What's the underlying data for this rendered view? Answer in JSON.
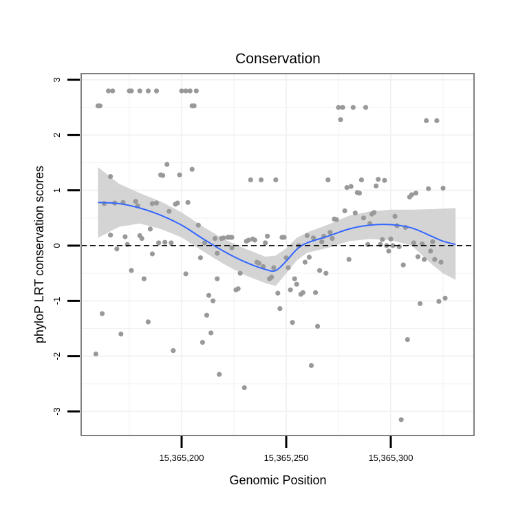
{
  "chart_data": {
    "type": "scatter",
    "title": "Conservation",
    "xlabel": "Genomic Position",
    "ylabel": "phyloP LRT conservation scores",
    "xlim": [
      15365152,
      15365342
    ],
    "ylim": [
      -3.4,
      3.1
    ],
    "x_ticks": [
      {
        "value": 15365200,
        "label": "15,365,200"
      },
      {
        "value": 15365250,
        "label": "15,365,250"
      },
      {
        "value": 15365300,
        "label": "15,365,300"
      }
    ],
    "y_ticks": [
      {
        "value": 3,
        "label": "3"
      },
      {
        "value": 2,
        "label": "2"
      },
      {
        "value": 1,
        "label": "1"
      },
      {
        "value": 0,
        "label": "0"
      },
      {
        "value": -1,
        "label": "-1"
      },
      {
        "value": -2,
        "label": "-2"
      },
      {
        "value": -3,
        "label": "-3"
      }
    ],
    "grid": true,
    "reference_line": {
      "y": 0,
      "style": "dashed"
    },
    "colors": {
      "points": "#999999",
      "smooth_line": "#3366ff",
      "confidence_band": "#cccccc",
      "reference_line": "#000000",
      "panel_border": "#7f7f7f",
      "gridlines": "#f2f2f2"
    },
    "points": [
      [
        15365160,
        2.53
      ],
      [
        15365161,
        2.53
      ],
      [
        15365162,
        -1.23
      ],
      [
        15365163,
        0.76
      ],
      [
        15365165,
        2.8
      ],
      [
        15365167,
        2.8
      ],
      [
        15365166,
        0.19
      ],
      [
        15365166,
        1.25
      ],
      [
        15365168,
        0.77
      ],
      [
        15365169,
        -0.06
      ],
      [
        15365171,
        -1.6
      ],
      [
        15365172,
        0.78
      ],
      [
        15365173,
        0.16
      ],
      [
        15365174,
        0.02
      ],
      [
        15365175,
        2.8
      ],
      [
        15365176,
        2.8
      ],
      [
        15365176,
        -0.45
      ],
      [
        15365178,
        0.8
      ],
      [
        15365179,
        0.72
      ],
      [
        15365180,
        2.8
      ],
      [
        15365180,
        0.18
      ],
      [
        15365181,
        0.13
      ],
      [
        15365182,
        -0.6
      ],
      [
        15365184,
        2.8
      ],
      [
        15365184,
        -1.38
      ],
      [
        15365185,
        0.3
      ],
      [
        15365186,
        -0.15
      ],
      [
        15365186,
        0.76
      ],
      [
        15365188,
        2.8
      ],
      [
        15365188,
        0.77
      ],
      [
        15365189,
        0.05
      ],
      [
        15365190,
        1.28
      ],
      [
        15365191,
        1.27
      ],
      [
        15365192,
        0.06
      ],
      [
        15365193,
        1.47
      ],
      [
        15365194,
        0.62
      ],
      [
        15365195,
        0.05
      ],
      [
        15365196,
        -1.9
      ],
      [
        15365197,
        0.75
      ],
      [
        15365198,
        0.77
      ],
      [
        15365199,
        1.28
      ],
      [
        15365200,
        2.8
      ],
      [
        15365202,
        2.8
      ],
      [
        15365202,
        -0.51
      ],
      [
        15365203,
        0.78
      ],
      [
        15365204,
        2.8
      ],
      [
        15365205,
        1.38
      ],
      [
        15365205,
        2.53
      ],
      [
        15365206,
        2.53
      ],
      [
        15365207,
        2.8
      ],
      [
        15365208,
        0.37
      ],
      [
        15365209,
        -0.22
      ],
      [
        15365210,
        -1.75
      ],
      [
        15365211,
        0.05
      ],
      [
        15365212,
        -1.26
      ],
      [
        15365213,
        -0.9
      ],
      [
        15365214,
        -1.58
      ],
      [
        15365215,
        -1.0
      ],
      [
        15365216,
        0.13
      ],
      [
        15365217,
        -0.14
      ],
      [
        15365217,
        -0.6
      ],
      [
        15365218,
        -2.33
      ],
      [
        15365219,
        0.13
      ],
      [
        15365220,
        0.14
      ],
      [
        15365222,
        0.15
      ],
      [
        15365223,
        0.15
      ],
      [
        15365224,
        0.15
      ],
      [
        15365224,
        -0.04
      ],
      [
        15365226,
        -0.8
      ],
      [
        15365227,
        -0.78
      ],
      [
        15365228,
        -0.5
      ],
      [
        15365230,
        -2.57
      ],
      [
        15365231,
        0.08
      ],
      [
        15365232,
        0.1
      ],
      [
        15365233,
        1.19
      ],
      [
        15365234,
        0.12
      ],
      [
        15365235,
        0.1
      ],
      [
        15365236,
        -0.3
      ],
      [
        15365237,
        -0.32
      ],
      [
        15365238,
        1.19
      ],
      [
        15365239,
        -0.38
      ],
      [
        15365240,
        0.05
      ],
      [
        15365241,
        0.17
      ],
      [
        15365242,
        -0.6
      ],
      [
        15365243,
        -0.57
      ],
      [
        15365244,
        -0.4
      ],
      [
        15365245,
        1.19
      ],
      [
        15365246,
        -0.86
      ],
      [
        15365247,
        -1.14
      ],
      [
        15365248,
        0.15
      ],
      [
        15365249,
        0.15
      ],
      [
        15365250,
        -0.22
      ],
      [
        15365251,
        -0.4
      ],
      [
        15365252,
        -0.8
      ],
      [
        15365253,
        -1.39
      ],
      [
        15365254,
        -0.6
      ],
      [
        15365255,
        -0.7
      ],
      [
        15365256,
        0.0
      ],
      [
        15365257,
        -0.88
      ],
      [
        15365258,
        -0.85
      ],
      [
        15365259,
        -0.3
      ],
      [
        15365260,
        0.18
      ],
      [
        15365261,
        -0.21
      ],
      [
        15365262,
        -2.17
      ],
      [
        15365263,
        0.14
      ],
      [
        15365264,
        -0.85
      ],
      [
        15365265,
        -1.46
      ],
      [
        15365266,
        -0.45
      ],
      [
        15365267,
        0.07
      ],
      [
        15365268,
        0.17
      ],
      [
        15365269,
        -0.5
      ],
      [
        15365270,
        1.19
      ],
      [
        15365271,
        0.24
      ],
      [
        15365272,
        0.13
      ],
      [
        15365273,
        0.48
      ],
      [
        15365274,
        0.47
      ],
      [
        15365275,
        2.5
      ],
      [
        15365276,
        2.28
      ],
      [
        15365277,
        2.5
      ],
      [
        15365278,
        0.63
      ],
      [
        15365279,
        1.05
      ],
      [
        15365280,
        -0.25
      ],
      [
        15365281,
        1.07
      ],
      [
        15365282,
        2.5
      ],
      [
        15365283,
        0.59
      ],
      [
        15365284,
        0.96
      ],
      [
        15365285,
        0.95
      ],
      [
        15365286,
        1.19
      ],
      [
        15365287,
        0.5
      ],
      [
        15365288,
        2.5
      ],
      [
        15365289,
        0.02
      ],
      [
        15365290,
        0.4
      ],
      [
        15365291,
        0.57
      ],
      [
        15365292,
        0.6
      ],
      [
        15365293,
        1.08
      ],
      [
        15365294,
        1.2
      ],
      [
        15365295,
        0.02
      ],
      [
        15365296,
        0.11
      ],
      [
        15365297,
        1.18
      ],
      [
        15365298,
        0.0
      ],
      [
        15365299,
        -0.1
      ],
      [
        15365300,
        0.12
      ],
      [
        15365301,
        0.0
      ],
      [
        15365302,
        0.53
      ],
      [
        15365303,
        0.36
      ],
      [
        15365304,
        -0.02
      ],
      [
        15365305,
        -3.15
      ],
      [
        15365306,
        -0.35
      ],
      [
        15365307,
        0.33
      ],
      [
        15365308,
        -1.7
      ],
      [
        15365309,
        0.88
      ],
      [
        15365310,
        0.92
      ],
      [
        15365311,
        0.05
      ],
      [
        15365312,
        0.95
      ],
      [
        15365313,
        -0.2
      ],
      [
        15365314,
        -1.05
      ],
      [
        15365315,
        0.03
      ],
      [
        15365316,
        -0.25
      ],
      [
        15365317,
        2.26
      ],
      [
        15365318,
        1.03
      ],
      [
        15365319,
        -0.1
      ],
      [
        15365320,
        0.07
      ],
      [
        15365321,
        -0.25
      ],
      [
        15365322,
        2.26
      ],
      [
        15365323,
        -1.01
      ],
      [
        15365324,
        -0.3
      ],
      [
        15365325,
        1.04
      ],
      [
        15365326,
        -0.95
      ],
      [
        15365159,
        -1.96
      ]
    ],
    "smooth_line": [
      [
        15365160,
        0.78
      ],
      [
        15365170,
        0.76
      ],
      [
        15365180,
        0.68
      ],
      [
        15365190,
        0.55
      ],
      [
        15365200,
        0.37
      ],
      [
        15365210,
        0.13
      ],
      [
        15365220,
        -0.1
      ],
      [
        15365230,
        -0.29
      ],
      [
        15365240,
        -0.43
      ],
      [
        15365245,
        -0.45
      ],
      [
        15365250,
        -0.28
      ],
      [
        15365255,
        -0.07
      ],
      [
        15365260,
        0.05
      ],
      [
        15365270,
        0.17
      ],
      [
        15365280,
        0.3
      ],
      [
        15365290,
        0.37
      ],
      [
        15365300,
        0.38
      ],
      [
        15365310,
        0.32
      ],
      [
        15365320,
        0.16
      ],
      [
        15365325,
        0.08
      ],
      [
        15365331,
        0.02
      ]
    ],
    "band_upper": [
      [
        15365160,
        1.42
      ],
      [
        15365170,
        1.12
      ],
      [
        15365180,
        0.95
      ],
      [
        15365190,
        0.8
      ],
      [
        15365200,
        0.6
      ],
      [
        15365210,
        0.35
      ],
      [
        15365220,
        0.12
      ],
      [
        15365230,
        -0.05
      ],
      [
        15365240,
        -0.2
      ],
      [
        15365245,
        -0.18
      ],
      [
        15365250,
        -0.05
      ],
      [
        15365255,
        0.14
      ],
      [
        15365260,
        0.24
      ],
      [
        15365270,
        0.38
      ],
      [
        15365280,
        0.54
      ],
      [
        15365290,
        0.62
      ],
      [
        15365300,
        0.65
      ],
      [
        15365310,
        0.65
      ],
      [
        15365320,
        0.66
      ],
      [
        15365325,
        0.67
      ],
      [
        15365331,
        0.68
      ]
    ],
    "band_lower": [
      [
        15365160,
        0.14
      ],
      [
        15365170,
        0.34
      ],
      [
        15365180,
        0.4
      ],
      [
        15365190,
        0.3
      ],
      [
        15365200,
        0.15
      ],
      [
        15365210,
        -0.1
      ],
      [
        15365220,
        -0.33
      ],
      [
        15365230,
        -0.53
      ],
      [
        15365240,
        -0.68
      ],
      [
        15365245,
        -0.73
      ],
      [
        15365250,
        -0.5
      ],
      [
        15365255,
        -0.27
      ],
      [
        15365260,
        -0.13
      ],
      [
        15365270,
        -0.04
      ],
      [
        15365280,
        0.08
      ],
      [
        15365290,
        0.12
      ],
      [
        15365300,
        0.1
      ],
      [
        15365310,
        0.0
      ],
      [
        15365320,
        -0.35
      ],
      [
        15365325,
        -0.5
      ],
      [
        15365331,
        -0.62
      ]
    ]
  }
}
